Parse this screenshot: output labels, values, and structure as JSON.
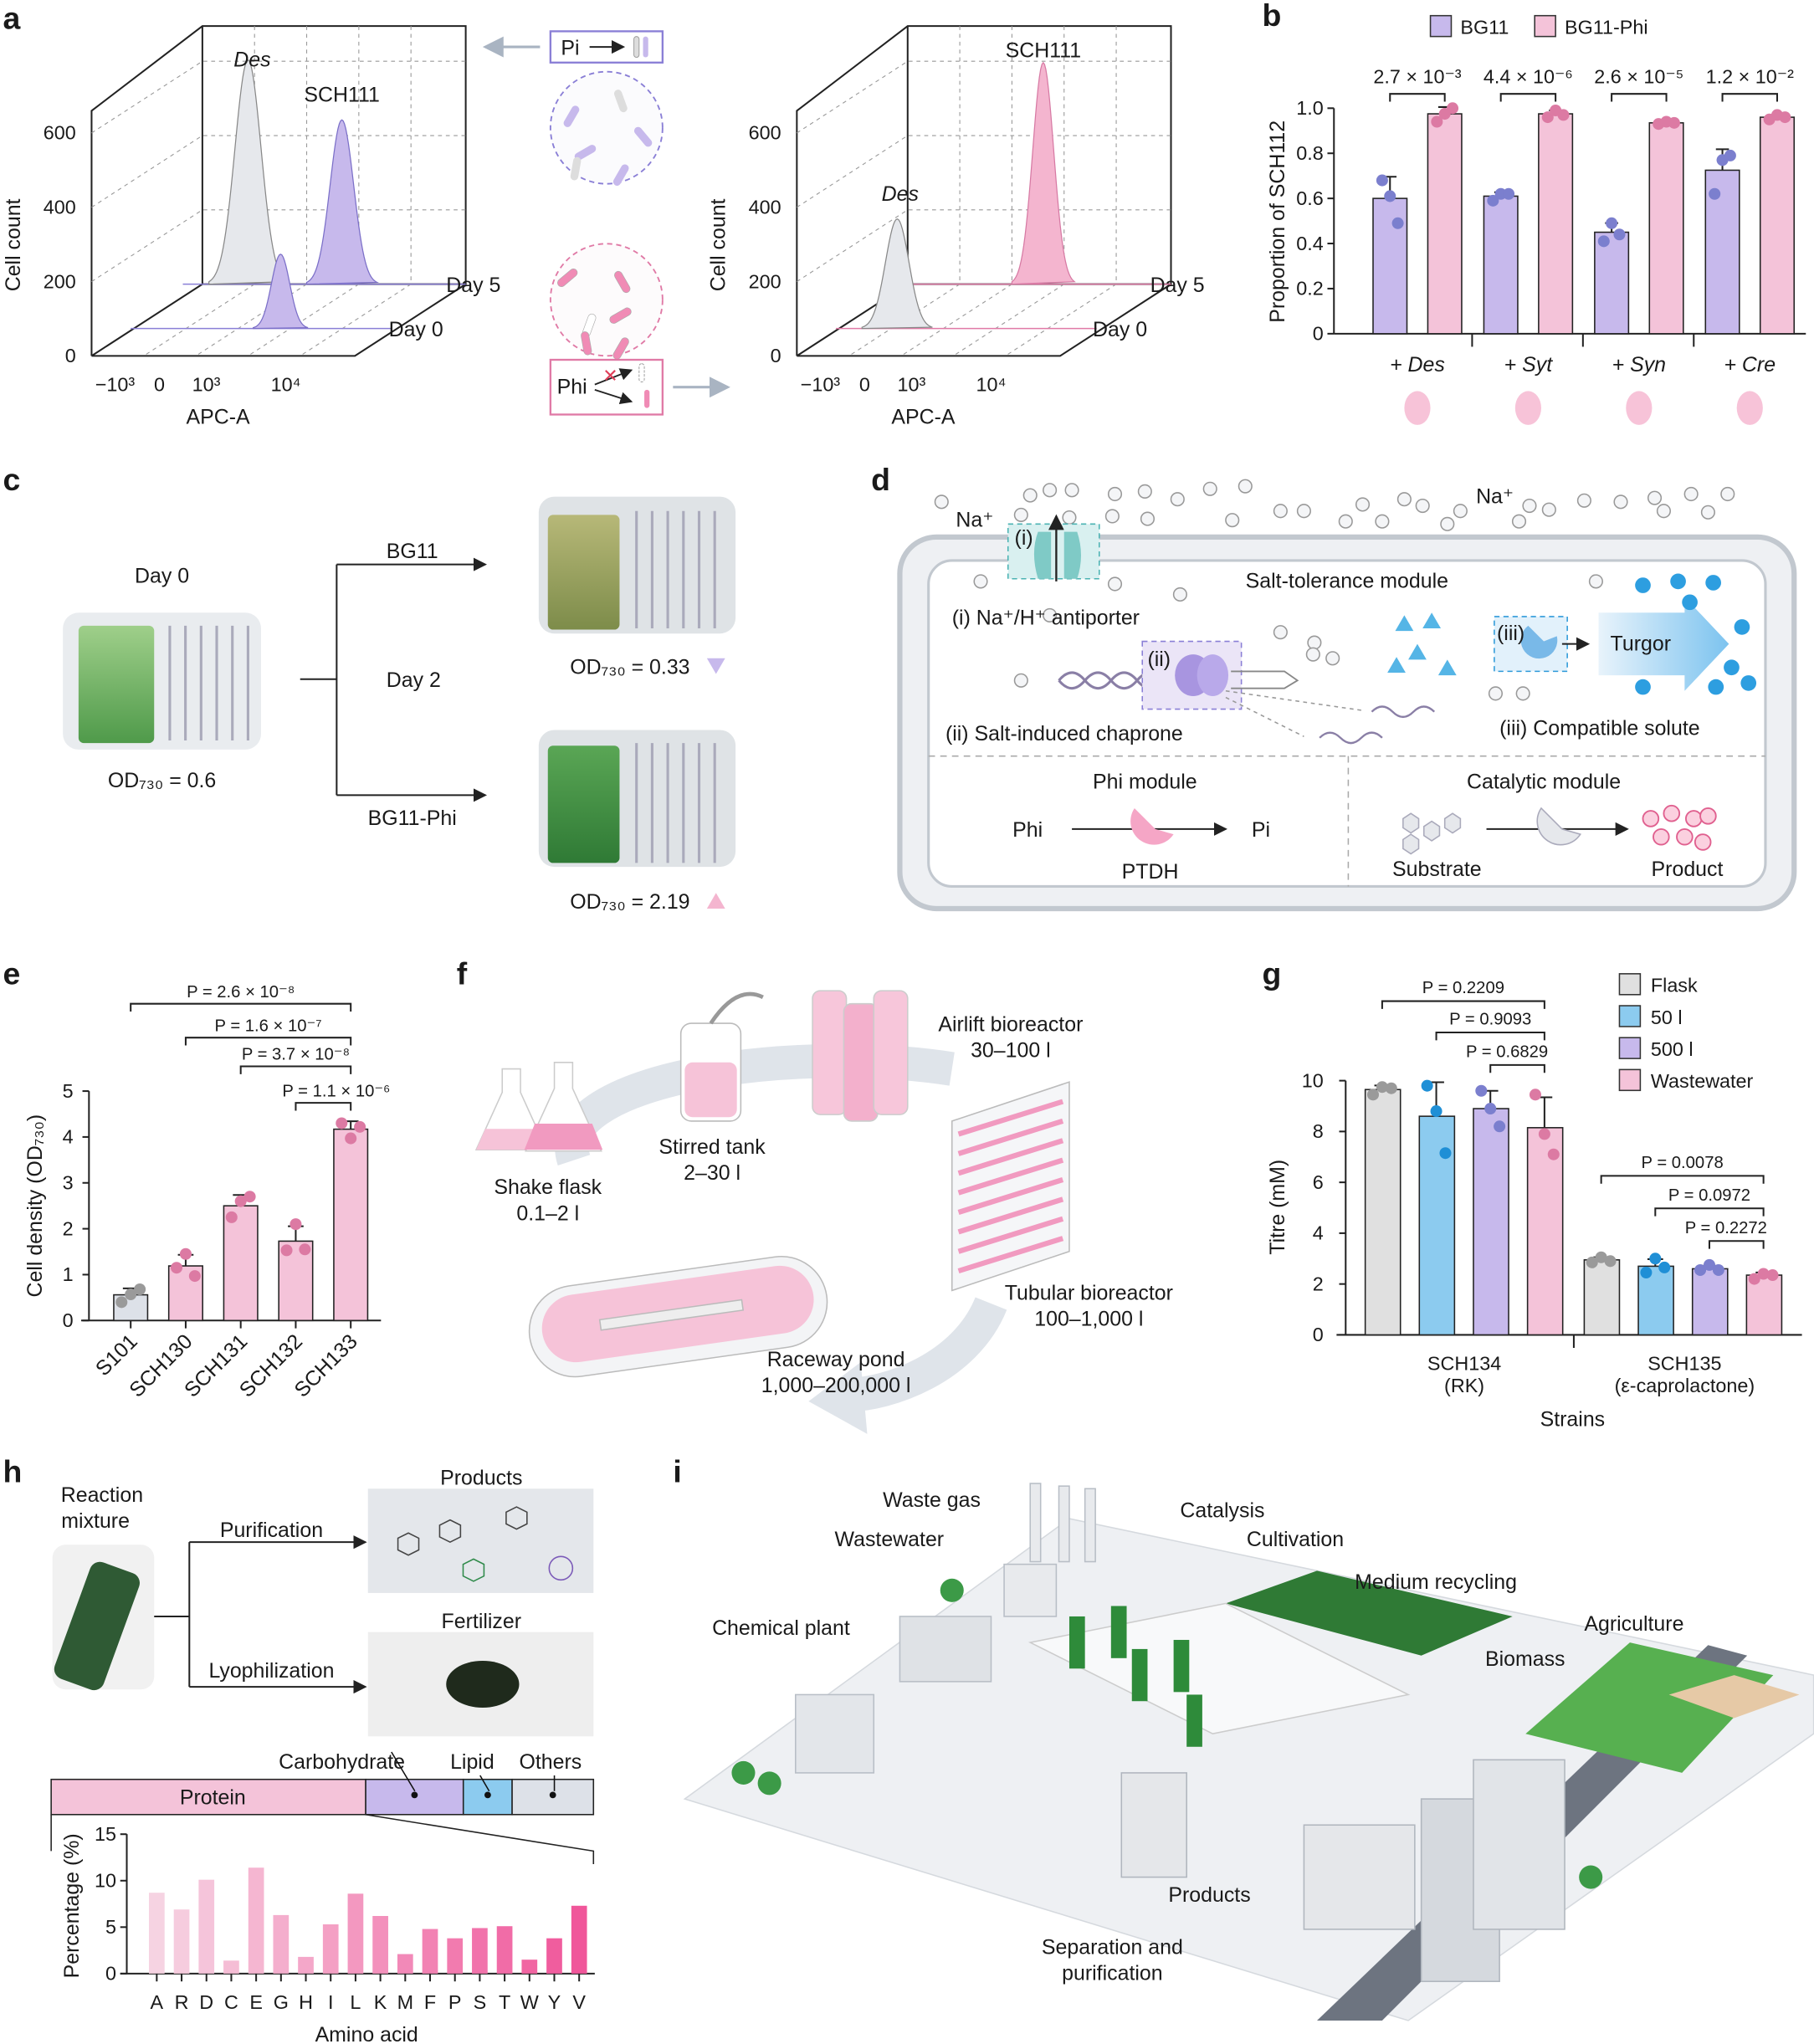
{
  "panel_letters": {
    "a": "a",
    "b": "b",
    "c": "c",
    "d": "d",
    "e": "e",
    "f": "f",
    "g": "g",
    "h": "h",
    "i": "i"
  },
  "panel_a": {
    "left": {
      "peak_labels": [
        "Des",
        "SCH111"
      ],
      "y_label": "Cell count",
      "y_ticks": [
        "600",
        "400",
        "200",
        "0"
      ],
      "x_ticks": [
        "−10³",
        "0",
        "10³",
        "10⁴"
      ],
      "x_label": "APC-A",
      "days": [
        "Day 5",
        "Day 0"
      ]
    },
    "right": {
      "peak_labels": [
        "SCH111",
        "Des"
      ],
      "y_label": "Cell count",
      "y_ticks": [
        "600",
        "400",
        "200",
        "0"
      ],
      "x_ticks": [
        "−10³",
        "0",
        "10³",
        "10⁴"
      ],
      "x_label": "APC-A",
      "days": [
        "Day 5",
        "Day 0"
      ]
    },
    "pi_box": "Pi",
    "phi_box": "Phi"
  },
  "panel_c": {
    "day0": "Day 0",
    "od_initial": "OD₇₃₀ = 0.6",
    "branch_top": "BG11",
    "day2": "Day 2",
    "branch_bottom": "BG11-Phi",
    "od_bg11": "OD₇₃₀ = 0.33",
    "od_phi": "OD₇₃₀ = 2.19"
  },
  "panel_d": {
    "na_labels": [
      "Na⁺",
      "Na⁺"
    ],
    "module_salt": "Salt-tolerance module",
    "i_tag": "(i)",
    "ii_tag": "(ii)",
    "iii_tag": "(iii)",
    "antiporter": "(i) Na⁺/H⁺ antiporter",
    "chaperone": "(ii) Salt-induced chaprone",
    "solute": "(iii) Compatible solute",
    "turgor": "Turgor",
    "module_phi": "Phi module",
    "phi": "Phi",
    "pi": "Pi",
    "ptdh": "PTDH",
    "module_cat": "Catalytic module",
    "substrate": "Substrate",
    "product": "Product"
  },
  "panel_f": {
    "stages": [
      {
        "name": "Shake flask",
        "volume": "0.1–2 l"
      },
      {
        "name": "Stirred tank",
        "volume": "2–30 l"
      },
      {
        "name": "Airlift bioreactor",
        "volume": "30–100 l"
      },
      {
        "name": "Tubular bioreactor",
        "volume": "100–1,000 l"
      },
      {
        "name": "Raceway pond",
        "volume": "1,000–200,000 l"
      }
    ]
  },
  "panel_h": {
    "reaction": "Reaction",
    "mixture": "mixture",
    "purification": "Purification",
    "lyophilization": "Lyophilization",
    "products": "Products",
    "fertilizer": "Fertilizer"
  },
  "panel_i": {
    "labels": [
      "Waste gas",
      "Wastewater",
      "Catalysis",
      "Cultivation",
      "Medium recycling",
      "Chemical plant",
      "Agriculture",
      "Biomass",
      "Products",
      "Separation and",
      "purification"
    ]
  },
  "colors": {
    "purple_bar": "#c7b9ec",
    "purple_dot": "#7b7fce",
    "pink_bar": "#f4c3d9",
    "pink_dot": "#dc7aa3",
    "gray_bar": "#e0e0e0",
    "gray_dot": "#9a9a9a",
    "blue_bar": "#8ccbef",
    "blue_dot": "#1f8fd6"
  },
  "chart_data": [
    {
      "type": "bar",
      "panel": "b",
      "categories": [
        "+ Des",
        "+ Syt",
        "+ Syn",
        "+ Cre"
      ],
      "ylabel": "Proportion of SCH112",
      "ylim": [
        0,
        1.0
      ],
      "y_tick_labels": [
        "0",
        "0.2",
        "0.4",
        "0.6",
        "0.8",
        "1.0"
      ],
      "y_ticks": [
        0,
        0.2,
        0.4,
        0.6,
        0.8,
        1.0
      ],
      "legend": "top",
      "series": [
        {
          "name": "BG11",
          "color": "#c7b9ec",
          "values": [
            0.6,
            0.61,
            0.45,
            0.725
          ],
          "points": [
            [
              0.68,
              0.61,
              0.49
            ],
            [
              0.59,
              0.62,
              0.62
            ],
            [
              0.41,
              0.49,
              0.44
            ],
            [
              0.62,
              0.77,
              0.79
            ]
          ]
        },
        {
          "name": "BG11-Phi",
          "color": "#f4c3d9",
          "values": [
            0.975,
            0.975,
            0.935,
            0.96
          ],
          "points": [
            [
              0.94,
              0.975,
              1.0
            ],
            [
              0.96,
              0.99,
              0.97
            ],
            [
              0.93,
              0.94,
              0.935
            ],
            [
              0.95,
              0.97,
              0.96
            ]
          ]
        }
      ],
      "p_values": [
        "2.7 × 10⁻³",
        "4.4 × 10⁻⁶",
        "2.6 × 10⁻⁵",
        "1.2 × 10⁻²"
      ]
    },
    {
      "type": "bar",
      "panel": "e",
      "categories": [
        "S101",
        "SCH130",
        "SCH131",
        "SCH132",
        "SCH133"
      ],
      "values": [
        0.56,
        1.19,
        2.5,
        1.73,
        4.17
      ],
      "points": [
        [
          0.4,
          0.57,
          0.68
        ],
        [
          1.15,
          1.45,
          0.97
        ],
        [
          2.25,
          2.6,
          2.7
        ],
        [
          1.53,
          2.1,
          1.55
        ],
        [
          4.3,
          3.97,
          4.22
        ]
      ],
      "ylabel": "Cell density (OD₇₃₀)",
      "ylim": [
        0,
        5
      ],
      "y_tick_labels": [
        "0",
        "1",
        "2",
        "3",
        "4",
        "5"
      ],
      "y_ticks": [
        0,
        1,
        2,
        3,
        4,
        5
      ],
      "comparisons": [
        {
          "from": 0,
          "to": 4,
          "p": "P = 2.6 × 10⁻⁸"
        },
        {
          "from": 1,
          "to": 4,
          "p": "P = 1.6 × 10⁻⁷"
        },
        {
          "from": 2,
          "to": 4,
          "p": "P = 3.7 × 10⁻⁸"
        },
        {
          "from": 3,
          "to": 4,
          "p": "P = 1.1 × 10⁻⁶"
        }
      ]
    },
    {
      "type": "bar",
      "panel": "g",
      "groups": [
        [
          "SCH134",
          "(RK)"
        ],
        [
          "SCH135",
          "(ε-caprolactone)"
        ]
      ],
      "xlabel": "Strains",
      "ylabel": "Titre (mM)",
      "ylim": [
        0,
        10
      ],
      "y_tick_labels": [
        "0",
        "2",
        "4",
        "6",
        "8",
        "10"
      ],
      "y_ticks": [
        0,
        2,
        4,
        6,
        8,
        10
      ],
      "legend": "top-right",
      "series": [
        {
          "name": "Flask",
          "color": "#e0e0e0",
          "values": [
            9.65,
            2.95
          ],
          "points": [
            [
              9.45,
              9.75,
              9.7
            ],
            [
              2.85,
              3.05,
              2.9
            ]
          ]
        },
        {
          "name": "50 l",
          "color": "#8ccbef",
          "values": [
            8.6,
            2.7
          ],
          "points": [
            [
              9.8,
              8.8,
              7.15
            ],
            [
              2.45,
              3.0,
              2.65
            ]
          ]
        },
        {
          "name": "500 l",
          "color": "#c7b9ec",
          "values": [
            8.9,
            2.6
          ],
          "points": [
            [
              9.6,
              8.9,
              8.2
            ],
            [
              2.55,
              2.75,
              2.55
            ]
          ]
        },
        {
          "name": "Wastewater",
          "color": "#f4c3d9",
          "values": [
            8.15,
            2.35
          ],
          "points": [
            [
              9.45,
              7.9,
              7.1
            ],
            [
              2.2,
              2.4,
              2.35
            ]
          ]
        }
      ],
      "comparisons": [
        {
          "group": 0,
          "from": 0,
          "to": 3,
          "p": "P = 0.2209"
        },
        {
          "group": 0,
          "from": 1,
          "to": 3,
          "p": "P = 0.9093"
        },
        {
          "group": 0,
          "from": 2,
          "to": 3,
          "p": "P = 0.6829"
        },
        {
          "group": 1,
          "from": 0,
          "to": 3,
          "p": "P = 0.0078"
        },
        {
          "group": 1,
          "from": 1,
          "to": 3,
          "p": "P = 0.0972"
        },
        {
          "group": 1,
          "from": 2,
          "to": 3,
          "p": "P = 0.2272"
        }
      ]
    },
    {
      "type": "bar",
      "panel": "h-composition",
      "stacked": true,
      "categories": [
        "Protein",
        "Carbohydrate",
        "Lipid",
        "Others"
      ],
      "fractions": [
        0.58,
        0.18,
        0.09,
        0.15
      ],
      "colors": [
        "#f4c3d9",
        "#c7b9ec",
        "#8ccbef",
        "#dde1e8"
      ]
    },
    {
      "type": "bar",
      "panel": "h-amino",
      "categories": [
        "A",
        "R",
        "D",
        "C",
        "E",
        "G",
        "H",
        "I",
        "L",
        "K",
        "M",
        "F",
        "P",
        "S",
        "T",
        "W",
        "Y",
        "V"
      ],
      "values": [
        8.7,
        6.9,
        10.1,
        1.4,
        11.4,
        6.3,
        1.8,
        5.3,
        8.6,
        6.2,
        2.1,
        4.8,
        3.8,
        4.9,
        5.1,
        1.5,
        3.8,
        7.3
      ],
      "xlabel": "Amino acid",
      "ylabel": "Percentage (%)",
      "ylim": [
        0,
        15
      ],
      "y_tick_labels": [
        "0",
        "5",
        "10",
        "15"
      ],
      "y_ticks": [
        0,
        5,
        10,
        15
      ]
    }
  ]
}
